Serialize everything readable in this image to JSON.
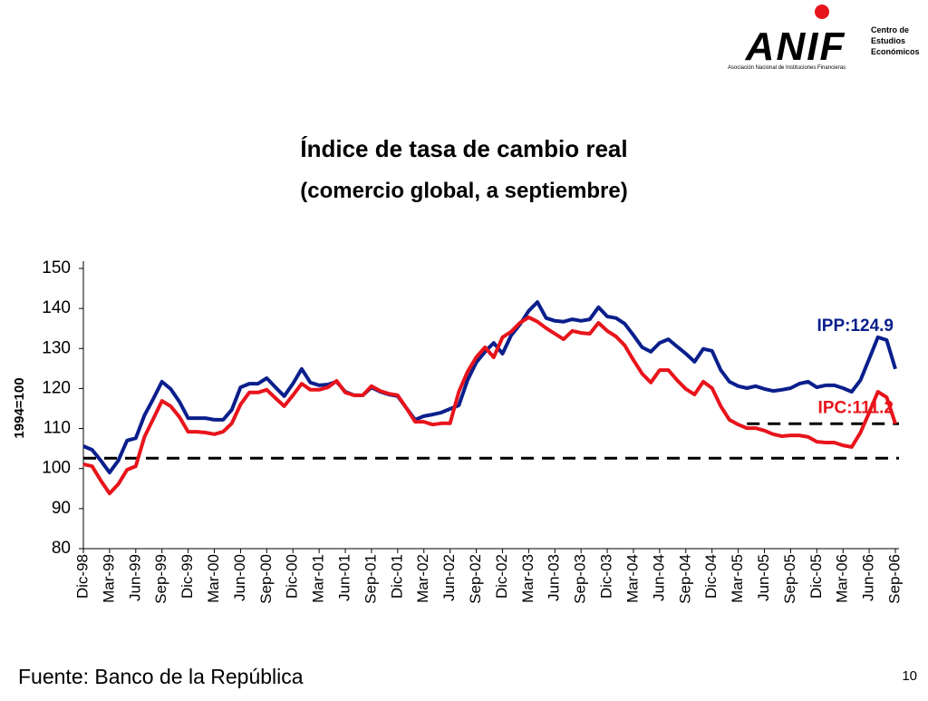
{
  "logo": {
    "name": "ANIF",
    "subtitle": "Asociación Nacional de Instituciones Financieras",
    "unit": [
      "Centro de",
      "Estudios",
      "Económicos"
    ]
  },
  "chart_data": {
    "type": "line",
    "title": "Índice de tasa de cambio real",
    "subtitle": "(comercio global, a septiembre)",
    "y_label": "1994=100",
    "categories": [
      "Dic-98",
      null,
      null,
      "Mar-99",
      null,
      null,
      "Jun-99",
      null,
      null,
      "Sep-99",
      null,
      null,
      "Dic-99",
      null,
      null,
      "Mar-00",
      null,
      null,
      "Jun-00",
      null,
      null,
      "Sep-00",
      null,
      null,
      "Dic-00",
      null,
      null,
      "Mar-01",
      null,
      null,
      "Jun-01",
      null,
      null,
      "Sep-01",
      null,
      null,
      "Dic-01",
      null,
      null,
      "Mar-02",
      null,
      null,
      "Jun-02",
      null,
      null,
      "Sep-02",
      null,
      null,
      "Dic-02",
      null,
      null,
      "Mar-03",
      null,
      null,
      "Jun-03",
      null,
      null,
      "Sep-03",
      null,
      null,
      "Dic-03",
      null,
      null,
      "Mar-04",
      null,
      null,
      "Jun-04",
      null,
      null,
      "Sep-04",
      null,
      null,
      "Dic-04",
      null,
      null,
      "Mar-05",
      null,
      null,
      "Jun-05",
      null,
      null,
      "Sep-05",
      null,
      null,
      "Dic-05",
      null,
      null,
      "Mar-06",
      null,
      null,
      "Jun-06",
      null,
      null,
      "Sep-06"
    ],
    "series": [
      {
        "color": "#0a1f8c",
        "values": [
          105.6,
          104.7,
          102.0,
          99.0,
          102.0,
          107.0,
          107.6,
          113.3,
          117.4,
          121.7,
          119.9,
          116.7,
          112.6,
          112.6,
          112.6,
          112.2,
          112.2,
          114.7,
          120.3,
          121.2,
          121.2,
          122.6,
          120.3,
          118.1,
          121.2,
          124.9,
          121.5,
          120.8,
          121.0,
          121.7,
          119.2,
          118.3,
          118.3,
          120.3,
          119.2,
          118.5,
          118.1,
          115.1,
          112.2,
          113.1,
          113.5,
          114.0,
          114.9,
          115.8,
          122.1,
          126.5,
          129.2,
          131.4,
          128.7,
          133.3,
          136.0,
          139.4,
          141.6,
          137.6,
          136.9,
          136.7,
          137.3,
          136.9,
          137.3,
          140.3,
          138.0,
          137.6,
          136.2,
          133.3,
          130.3,
          129.2,
          131.4,
          132.3,
          130.5,
          128.7,
          126.7,
          129.9,
          129.4,
          124.6,
          121.7,
          120.6,
          120.1,
          120.6,
          119.9,
          119.4,
          119.7,
          120.1,
          121.2,
          121.7,
          120.3,
          120.8,
          120.8,
          120.1,
          119.2,
          122.1,
          127.4,
          132.8,
          132.1,
          124.9
        ]
      },
      {
        "color": "#e8141b",
        "values": [
          101.1,
          100.6,
          97.0,
          93.8,
          96.1,
          99.7,
          100.6,
          107.9,
          112.4,
          116.9,
          115.6,
          112.9,
          109.2,
          109.2,
          109.0,
          108.6,
          109.2,
          111.3,
          116.0,
          119.0,
          119.0,
          119.7,
          117.6,
          115.6,
          118.3,
          121.2,
          119.7,
          119.7,
          120.3,
          121.9,
          119.0,
          118.3,
          118.3,
          120.6,
          119.4,
          118.7,
          118.3,
          115.1,
          111.7,
          111.7,
          111.0,
          111.3,
          111.3,
          119.2,
          124.2,
          127.8,
          130.3,
          127.8,
          132.8,
          134.2,
          136.4,
          137.8,
          136.7,
          135.1,
          133.7,
          132.3,
          134.4,
          133.9,
          133.7,
          136.4,
          134.4,
          133.0,
          130.8,
          127.1,
          123.7,
          121.5,
          124.6,
          124.6,
          122.1,
          119.9,
          118.5,
          121.7,
          120.1,
          115.6,
          112.2,
          111.0,
          110.1,
          110.1,
          109.5,
          108.6,
          108.1,
          108.3,
          108.3,
          107.9,
          106.7,
          106.5,
          106.5,
          105.8,
          105.4,
          109.0,
          114.0,
          119.2,
          117.8,
          111.2
        ]
      }
    ],
    "annotations": [
      {
        "text": "IPP:124.9",
        "series": 0
      },
      {
        "text": "IPC:111.2",
        "series": 1
      }
    ],
    "reference_lines": [
      {
        "value": 102.6,
        "start": 0
      },
      {
        "value": 111.2,
        "start": 76
      }
    ],
    "ylim": [
      80,
      150
    ],
    "yticks": [
      80,
      90,
      100,
      110,
      120,
      130,
      140,
      150
    ]
  },
  "footer": {
    "source": "Fuente: Banco de la República",
    "page": "10"
  }
}
